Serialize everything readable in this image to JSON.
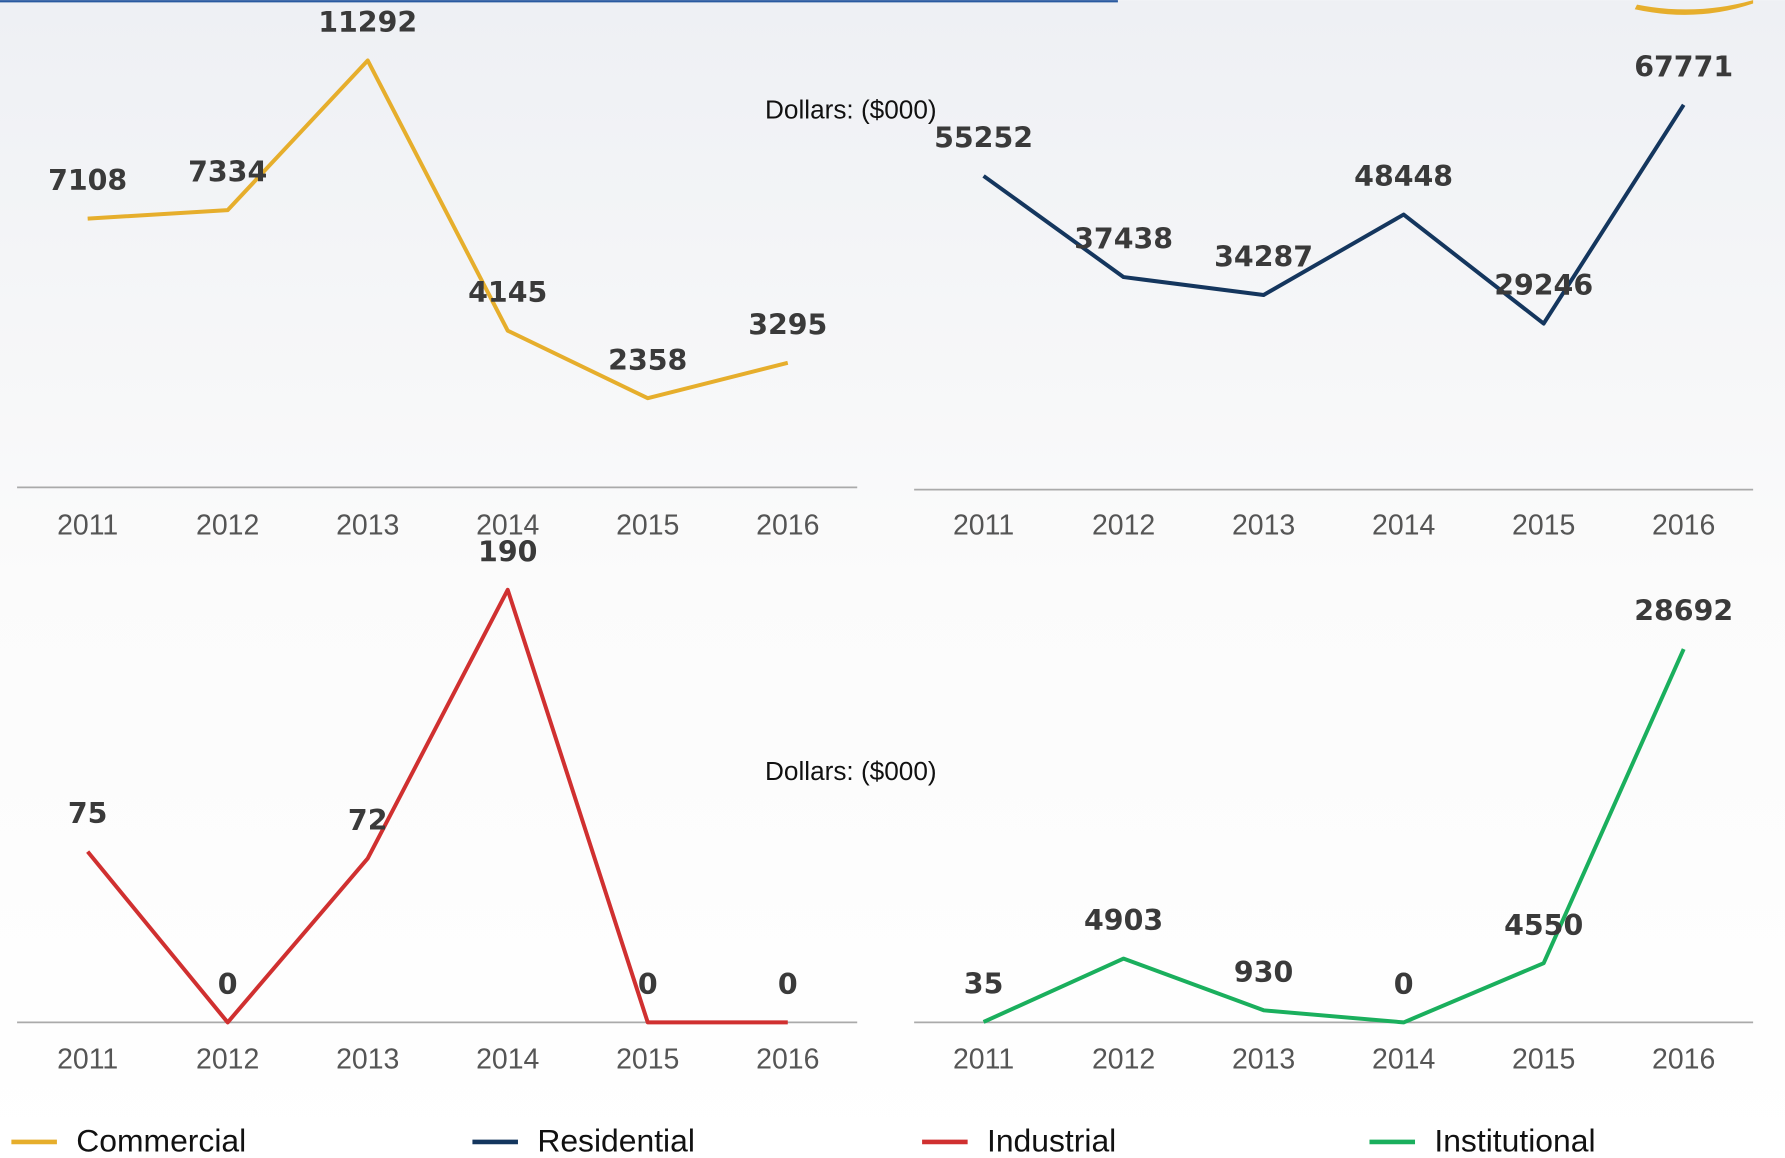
{
  "chart_data": [
    {
      "type": "line",
      "ylabel": "Dollars: ($000)",
      "categories": [
        "2011",
        "2012",
        "2013",
        "2014",
        "2015",
        "2016"
      ],
      "series": [
        {
          "name": "Commercial",
          "color": "#e6ae2c",
          "values": [
            7108,
            7334,
            11292,
            4145,
            2358,
            3295
          ]
        }
      ]
    },
    {
      "type": "line",
      "categories": [
        "2011",
        "2012",
        "2013",
        "2014",
        "2015",
        "2016"
      ],
      "series": [
        {
          "name": "Residential",
          "color": "#14365e",
          "values": [
            55252,
            37438,
            34287,
            48448,
            29246,
            67771
          ]
        }
      ]
    },
    {
      "type": "line",
      "ylabel": "Dollars: ($000)",
      "categories": [
        "2011",
        "2012",
        "2013",
        "2014",
        "2015",
        "2016"
      ],
      "series": [
        {
          "name": "Industrial",
          "color": "#d03030",
          "values": [
            75,
            0,
            72,
            190,
            0,
            0
          ]
        }
      ]
    },
    {
      "type": "line",
      "categories": [
        "2011",
        "2012",
        "2013",
        "2014",
        "2015",
        "2016"
      ],
      "series": [
        {
          "name": "Institutional",
          "color": "#1aaf5d",
          "values": [
            35,
            4903,
            930,
            0,
            4550,
            28692
          ]
        }
      ]
    }
  ]
}
